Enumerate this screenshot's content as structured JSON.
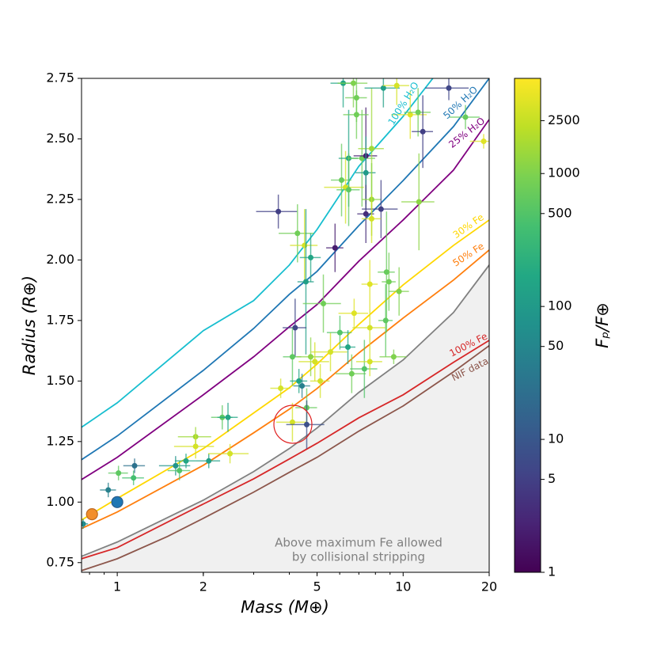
{
  "chart_data": {
    "type": "scatter",
    "xlabel": "Mass (M⊕)",
    "ylabel": "Radius (R⊕)",
    "xlog": true,
    "xlim": [
      0.75,
      20
    ],
    "xticks": [
      1,
      2,
      5,
      10,
      20
    ],
    "ylim": [
      0.71,
      2.75
    ],
    "yticks": [
      0.75,
      {
        "value": 1,
        "label": "1.00"
      },
      1.25,
      {
        "value": 1.5,
        "label": "1.50"
      },
      1.75,
      {
        "value": 2,
        "label": "2.00"
      },
      2.25,
      {
        "value": 2.5,
        "label": "2.50"
      },
      2.75
    ],
    "colorbar": {
      "label": "Fₚ/F⊕",
      "colormap": "viridis",
      "log": true,
      "clim": [
        1,
        5200
      ],
      "ticks": [
        1,
        5,
        10,
        50,
        100,
        500,
        1000,
        2500
      ]
    },
    "planets": {
      "x": [
        0.76,
        0.93,
        1.01,
        1.15,
        1.14,
        1.6,
        1.65,
        1.74,
        1.88,
        1.88,
        2.09,
        2.33,
        2.44,
        2.48,
        3.66,
        4.27,
        4.52,
        4.75,
        4.57,
        5.78,
        4.19,
        5.26,
        4.1,
        4.75,
        4.91,
        5.57,
        6.01,
        6.41,
        6.74,
        7.65,
        7.65,
        8.75,
        8.92,
        9.68,
        8.69,
        6.61,
        7.32,
        7.65,
        9.27,
        5.13,
        4.32,
        4.43,
        3.73,
        4.6,
        4.1,
        4.6,
        6.09,
        6.29,
        6.45,
        6.45,
        7.18,
        7.41,
        7.76,
        7.41,
        7.41,
        7.76,
        8.37,
        7.76,
        11.36,
        6.17,
        6.7,
        6.87,
        6.87,
        8.53,
        9.5,
        10.59,
        11.28,
        11.72,
        14.45,
        16.52,
        19.13
      ],
      "values": [
        0.91,
        1.05,
        1.12,
        1.15,
        1.1,
        1.15,
        1.13,
        1.17,
        1.27,
        1.23,
        1.17,
        1.35,
        1.35,
        1.2,
        2.2,
        2.11,
        2.06,
        2.01,
        1.91,
        2.05,
        1.72,
        1.82,
        1.6,
        1.6,
        1.58,
        1.62,
        1.7,
        1.64,
        1.78,
        1.72,
        1.9,
        1.95,
        1.91,
        1.87,
        1.75,
        1.53,
        1.55,
        1.58,
        1.6,
        1.5,
        1.5,
        1.48,
        1.47,
        1.39,
        1.33,
        1.32,
        2.33,
        2.3,
        2.42,
        2.29,
        2.42,
        2.43,
        2.46,
        2.36,
        2.19,
        2.25,
        2.21,
        2.17,
        2.24,
        2.73,
        2.73,
        2.67,
        2.6,
        2.71,
        2.72,
        2.6,
        2.61,
        2.53,
        2.71,
        2.59,
        2.49
      ],
      "x_err": [
        0.03,
        0.06,
        0.08,
        0.1,
        0.1,
        0.2,
        0.15,
        0.15,
        0.25,
        0.3,
        0.2,
        0.2,
        0.2,
        0.4,
        0.6,
        0.6,
        0.5,
        0.4,
        0.3,
        0.4,
        0.4,
        0.8,
        0.3,
        0.5,
        0.6,
        0.8,
        0.6,
        0.4,
        0.8,
        1.0,
        0.5,
        0.6,
        0.5,
        0.8,
        0.5,
        0.8,
        0.8,
        0.8,
        1.0,
        0.4,
        0.3,
        0.3,
        0.3,
        0.4,
        0.5,
        0.7,
        0.5,
        1.0,
        0.5,
        0.6,
        0.8,
        0.7,
        0.8,
        0.6,
        0.5,
        0.6,
        1.2,
        0.6,
        1.5,
        0.6,
        0.8,
        0.6,
        0.7,
        1.2,
        1.0,
        1.5,
        1.2,
        1.0,
        2.5,
        2.0,
        2.0
      ],
      "y_err": [
        0.02,
        0.03,
        0.03,
        0.03,
        0.03,
        0.04,
        0.04,
        0.03,
        0.04,
        0.05,
        0.03,
        0.05,
        0.06,
        0.04,
        0.07,
        0.12,
        0.15,
        0.1,
        0.3,
        0.1,
        0.12,
        0.12,
        0.12,
        0.08,
        0.08,
        0.08,
        0.07,
        0.07,
        0.06,
        0.08,
        0.1,
        0.25,
        0.12,
        0.1,
        0.15,
        0.08,
        0.12,
        0.06,
        0.03,
        0.07,
        0.05,
        0.05,
        0.04,
        0.08,
        0.08,
        0.1,
        0.15,
        0.15,
        0.2,
        0.15,
        0.2,
        0.2,
        0.25,
        0.15,
        0.12,
        0.15,
        0.12,
        0.1,
        0.2,
        0.1,
        0.1,
        0.1,
        0.1,
        0.08,
        0.08,
        0.1,
        0.1,
        0.15,
        0.05,
        0.05,
        0.03
      ],
      "flux": [
        60,
        40,
        600,
        25,
        400,
        80,
        500,
        150,
        1500,
        3000,
        120,
        600,
        150,
        3000,
        5,
        800,
        3000,
        150,
        120,
        2,
        6,
        800,
        600,
        1200,
        3000,
        3000,
        500,
        150,
        3500,
        3000,
        3500,
        700,
        800,
        1000,
        600,
        800,
        500,
        3000,
        1000,
        3000,
        150,
        40,
        3000,
        700,
        3000,
        8,
        700,
        3000,
        150,
        600,
        800,
        2,
        1500,
        100,
        3,
        1200,
        5,
        3000,
        1200,
        150,
        1000,
        800,
        800,
        120,
        3000,
        3500,
        800,
        5,
        6,
        700,
        3500
      ]
    },
    "solar_system": {
      "x": [
        0.816,
        1.0
      ],
      "values": [
        0.95,
        1.0
      ],
      "colors": [
        "#f28e2b",
        "#1f77b4"
      ]
    },
    "models": [
      {
        "name": "100% H₂O",
        "color": "#17becf",
        "x": [
          0.75,
          1,
          2,
          3,
          4,
          5,
          7,
          10,
          12.7
        ],
        "values": [
          1.309,
          1.41,
          1.708,
          1.832,
          1.979,
          2.126,
          2.387,
          2.593,
          2.75
        ]
      },
      {
        "name": "50% H₂O",
        "color": "#1f77b4",
        "x": [
          0.75,
          1,
          2,
          3,
          4,
          5,
          7,
          10,
          15,
          20
        ],
        "values": [
          1.175,
          1.273,
          1.544,
          1.717,
          1.858,
          1.953,
          2.142,
          2.328,
          2.551,
          2.75
        ]
      },
      {
        "name": "25% H₂O",
        "color": "#800080",
        "x": [
          0.75,
          1,
          2,
          3,
          4,
          5,
          7,
          10,
          15,
          20
        ],
        "values": [
          1.093,
          1.185,
          1.443,
          1.6,
          1.724,
          1.816,
          1.995,
          2.165,
          2.371,
          2.58
        ]
      },
      {
        "name": "30% Fe",
        "color": "#ffd700",
        "x": [
          0.75,
          1,
          2,
          3,
          4,
          5,
          7,
          10,
          15,
          20
        ],
        "values": [
          0.926,
          1.015,
          1.221,
          1.368,
          1.472,
          1.57,
          1.734,
          1.897,
          2.06,
          2.165
        ]
      },
      {
        "name": "50% Fe",
        "color": "#ff7f0e",
        "x": [
          0.75,
          1,
          2,
          3,
          4,
          5,
          7,
          10,
          15,
          20
        ],
        "values": [
          0.891,
          0.959,
          1.152,
          1.286,
          1.384,
          1.469,
          1.616,
          1.76,
          1.917,
          2.041
        ]
      },
      {
        "name": "100% Fe",
        "color": "#d62728",
        "x": [
          0.75,
          1,
          2,
          3,
          4,
          5,
          7,
          10,
          15,
          20
        ],
        "values": [
          0.766,
          0.812,
          0.992,
          1.096,
          1.178,
          1.243,
          1.348,
          1.443,
          1.577,
          1.668
        ]
      },
      {
        "name": "NIF data",
        "color": "#8c564b",
        "x": [
          0.75,
          1,
          1.5,
          2,
          3,
          4,
          5,
          7,
          10,
          15,
          20
        ],
        "values": [
          0.717,
          0.766,
          0.858,
          0.933,
          1.041,
          1.123,
          1.185,
          1.293,
          1.397,
          1.538,
          1.646
        ]
      }
    ],
    "stripping_limit": {
      "color": "#808080",
      "fill": "#f0f0f0",
      "x": [
        0.75,
        1,
        2,
        3,
        4,
        5,
        7,
        10,
        15,
        20
      ],
      "values": [
        0.776,
        0.835,
        1.008,
        1.126,
        1.221,
        1.306,
        1.453,
        1.587,
        1.783,
        1.979
      ]
    },
    "annotation": [
      "Above maximum Fe allowed",
      "by collisional stripping"
    ]
  }
}
